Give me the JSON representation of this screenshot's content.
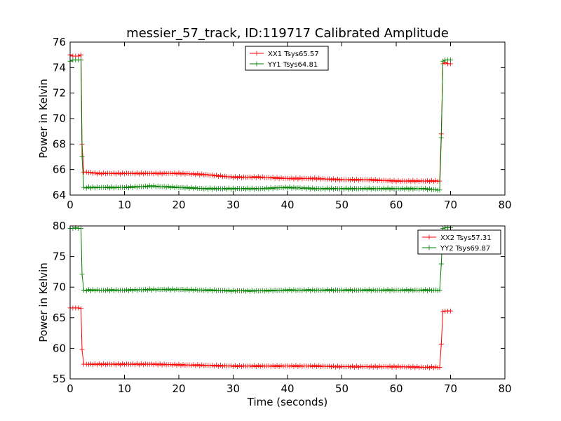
{
  "chart_data": [
    {
      "type": "line",
      "title": "messier_57_track, ID:119717 Calibrated Amplitude",
      "xlabel": "",
      "ylabel": "Power in Kelvin",
      "xlim": [
        0,
        80
      ],
      "ylim": [
        64,
        76
      ],
      "xticks": [
        "0",
        "10",
        "20",
        "30",
        "40",
        "50",
        "60",
        "70",
        "80"
      ],
      "yticks": [
        "64",
        "66",
        "68",
        "70",
        "72",
        "74",
        "76"
      ],
      "legend_position": "top-center",
      "grid": false,
      "series": [
        {
          "name": "XX1 Tsys65.57",
          "color": "#ff0000",
          "marker": "+",
          "x": [
            0,
            0.5,
            1,
            1.5,
            2,
            2.2,
            2.5,
            3,
            5,
            10,
            15,
            20,
            25,
            30,
            35,
            40,
            45,
            50,
            55,
            60,
            65,
            68,
            68.3,
            68.6,
            69,
            69.5,
            70
          ],
          "y": [
            75.0,
            74.9,
            74.9,
            74.9,
            75.0,
            68.0,
            65.8,
            65.8,
            65.7,
            65.7,
            65.7,
            65.7,
            65.6,
            65.4,
            65.4,
            65.3,
            65.3,
            65.2,
            65.2,
            65.1,
            65.1,
            65.1,
            68.8,
            74.3,
            74.4,
            74.3,
            74.3
          ]
        },
        {
          "name": "YY1 Tsys64.81",
          "color": "#008000",
          "marker": "+",
          "x": [
            0,
            0.5,
            1,
            1.5,
            2,
            2.2,
            2.5,
            3,
            5,
            10,
            15,
            20,
            25,
            30,
            35,
            40,
            45,
            50,
            55,
            60,
            65,
            68,
            68.3,
            68.6,
            69,
            69.5,
            70
          ],
          "y": [
            74.5,
            74.6,
            74.6,
            74.6,
            74.6,
            67.0,
            64.6,
            64.6,
            64.6,
            64.6,
            64.7,
            64.6,
            64.5,
            64.5,
            64.5,
            64.6,
            64.5,
            64.5,
            64.5,
            64.5,
            64.5,
            64.4,
            68.5,
            74.5,
            74.6,
            74.6,
            74.6
          ]
        }
      ]
    },
    {
      "type": "line",
      "title": "",
      "xlabel": "Time (seconds)",
      "ylabel": "Power in Kelvin",
      "xlim": [
        0,
        80
      ],
      "ylim": [
        55,
        80
      ],
      "xticks": [
        "0",
        "10",
        "20",
        "30",
        "40",
        "50",
        "60",
        "70",
        "80"
      ],
      "yticks": [
        "55",
        "60",
        "65",
        "70",
        "75",
        "80"
      ],
      "legend_position": "top-right",
      "grid": false,
      "series": [
        {
          "name": "XX2 Tsys57.31",
          "color": "#ff0000",
          "marker": "+",
          "x": [
            0,
            0.5,
            1,
            1.5,
            2,
            2.2,
            2.5,
            3,
            5,
            10,
            15,
            20,
            25,
            30,
            35,
            40,
            45,
            50,
            55,
            60,
            65,
            68,
            68.3,
            68.6,
            69,
            69.5,
            70
          ],
          "y": [
            66.6,
            66.6,
            66.6,
            66.6,
            66.5,
            59.8,
            57.4,
            57.4,
            57.4,
            57.4,
            57.4,
            57.3,
            57.2,
            57.1,
            57.1,
            57.1,
            57.1,
            57.0,
            57.0,
            57.0,
            56.9,
            56.9,
            60.7,
            66.0,
            66.1,
            66.1,
            66.1
          ]
        },
        {
          "name": "YY2 Tsys69.87",
          "color": "#008000",
          "marker": "+",
          "x": [
            0,
            0.5,
            1,
            1.5,
            2,
            2.2,
            2.5,
            3,
            5,
            10,
            15,
            20,
            25,
            30,
            35,
            40,
            45,
            50,
            55,
            60,
            65,
            68,
            68.3,
            68.6,
            69,
            69.5,
            70
          ],
          "y": [
            79.6,
            79.6,
            79.7,
            79.6,
            79.6,
            72.1,
            69.5,
            69.5,
            69.5,
            69.5,
            69.6,
            69.6,
            69.5,
            69.4,
            69.4,
            69.5,
            69.5,
            69.5,
            69.5,
            69.5,
            69.5,
            69.5,
            73.8,
            79.6,
            79.7,
            79.7,
            79.7
          ]
        }
      ]
    }
  ]
}
